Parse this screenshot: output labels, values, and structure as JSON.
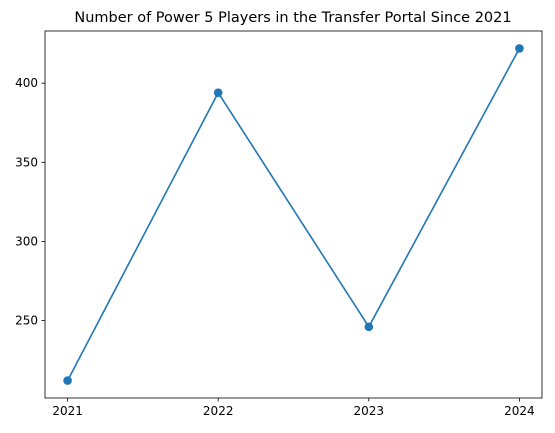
{
  "chart_data": {
    "type": "line",
    "title": "Number of Power 5 Players in the Transfer Portal Since 2021",
    "xlabel": "",
    "ylabel": "",
    "x": [
      2021,
      2022,
      2023,
      2024
    ],
    "x_tick_labels": [
      "2021",
      "2022",
      "2023",
      "2024"
    ],
    "series": [
      {
        "values": [
          212,
          394,
          246,
          422
        ],
        "color": "#1f77b4",
        "marker": "circle"
      }
    ],
    "xlim": [
      2020.85,
      2024.15
    ],
    "ylim": [
      201,
      433
    ],
    "y_ticks": [
      250,
      300,
      350,
      400
    ],
    "y_tick_labels": [
      "250",
      "300",
      "350",
      "400"
    ],
    "grid": false,
    "legend": "none"
  }
}
